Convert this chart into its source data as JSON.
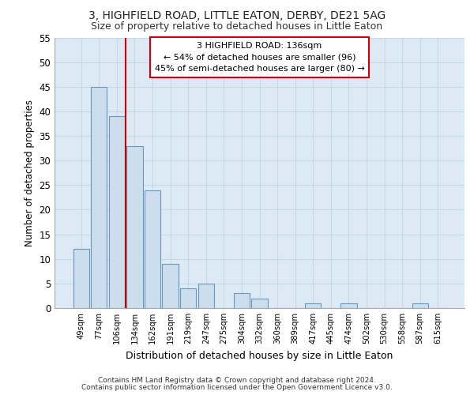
{
  "title1": "3, HIGHFIELD ROAD, LITTLE EATON, DERBY, DE21 5AG",
  "title2": "Size of property relative to detached houses in Little Eaton",
  "xlabel": "Distribution of detached houses by size in Little Eaton",
  "ylabel": "Number of detached properties",
  "categories": [
    "49sqm",
    "77sqm",
    "106sqm",
    "134sqm",
    "162sqm",
    "191sqm",
    "219sqm",
    "247sqm",
    "275sqm",
    "304sqm",
    "332sqm",
    "360sqm",
    "389sqm",
    "417sqm",
    "445sqm",
    "474sqm",
    "502sqm",
    "530sqm",
    "558sqm",
    "587sqm",
    "615sqm"
  ],
  "values": [
    12,
    45,
    39,
    33,
    24,
    9,
    4,
    5,
    0,
    3,
    2,
    0,
    0,
    1,
    0,
    1,
    0,
    0,
    0,
    1,
    0
  ],
  "bar_color": "#ccdded",
  "bar_edge_color": "#6699bb",
  "vline_x": 2.5,
  "vline_color": "#cc0000",
  "annotation_lines": [
    "3 HIGHFIELD ROAD: 136sqm",
    "← 54% of detached houses are smaller (96)",
    "45% of semi-detached houses are larger (80) →"
  ],
  "annotation_box_color": "#ffffff",
  "annotation_box_edge_color": "#cc0000",
  "ylim": [
    0,
    55
  ],
  "yticks": [
    0,
    5,
    10,
    15,
    20,
    25,
    30,
    35,
    40,
    45,
    50,
    55
  ],
  "grid_color": "#c5d8ea",
  "bg_color": "#ddeaf5",
  "footnote1": "Contains HM Land Registry data © Crown copyright and database right 2024.",
  "footnote2": "Contains public sector information licensed under the Open Government Licence v3.0."
}
